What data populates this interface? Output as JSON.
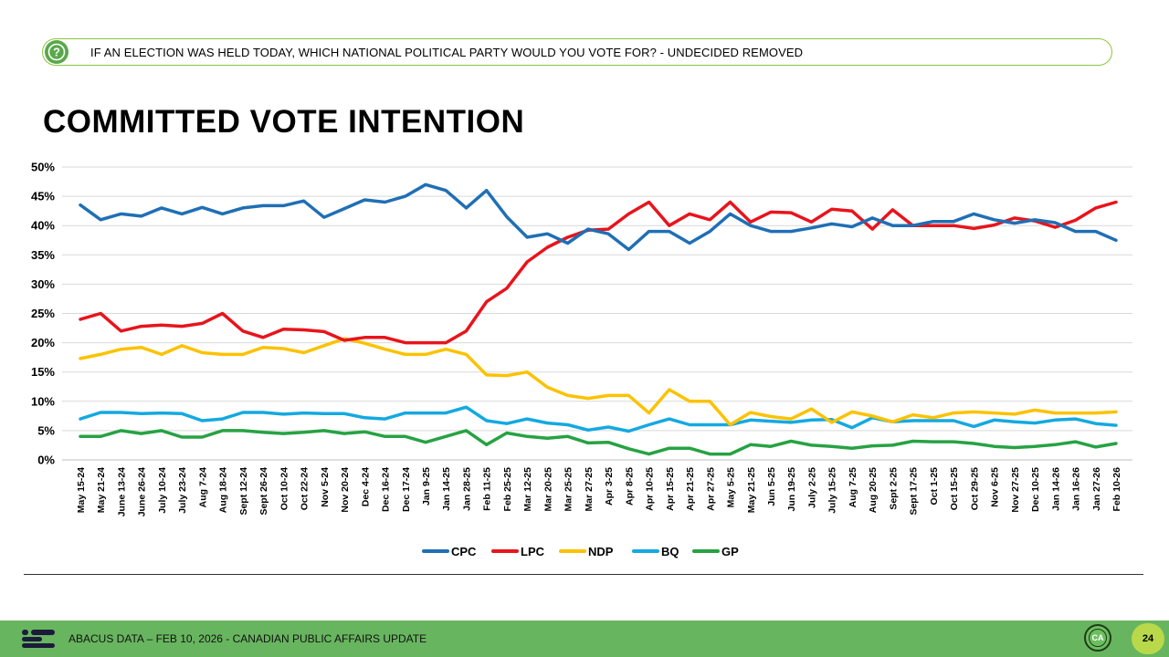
{
  "question": {
    "icon": "question-mark-icon",
    "text": "IF AN ELECTION WAS HELD TODAY, WHICH NATIONAL POLITICAL PARTY WOULD YOU VOTE FOR? - UNDECIDED REMOVED"
  },
  "title": "COMMITTED VOTE INTENTION",
  "footer": {
    "logo_icon": "abacus-logo-icon",
    "text": "ABACUS DATA – FEB 10, 2026 - CANADIAN PUBLIC AFFAIRS UPDATE",
    "badge_icon": "ca-badge-icon",
    "badge_text": "CA",
    "page_number": "24"
  },
  "chart_data": {
    "type": "line",
    "title": "COMMITTED VOTE INTENTION",
    "xlabel": "",
    "ylabel": "",
    "ylim": [
      0,
      50
    ],
    "yticks": [
      "0%",
      "5%",
      "10%",
      "15%",
      "20%",
      "25%",
      "30%",
      "35%",
      "40%",
      "45%",
      "50%"
    ],
    "grid": true,
    "legend_position": "bottom",
    "categories": [
      "May 15-24",
      "May 21-24",
      "June 13-24",
      "June 26-24",
      "July 10-24",
      "July 23-24",
      "Aug 7-24",
      "Aug 18-24",
      "Sept 12-24",
      "Sept 26-24",
      "Oct 10-24",
      "Oct 22-24",
      "Nov 5-24",
      "Nov 20-24",
      "Dec 4-24",
      "Dec 16-24",
      "Dec 17-24",
      "Jan 9-25",
      "Jan 14-25",
      "Jan 28-25",
      "Feb 11-25",
      "Feb 25-25",
      "Mar 12-25",
      "Mar 20-25",
      "Mar 25-25",
      "Mar 27-25",
      "Apr 3-25",
      "Apr 8-25",
      "Apr 10-25",
      "Apr 15-25",
      "Apr 21-25",
      "Apr 27-25",
      "May 5-25",
      "May 21-25",
      "Jun 5-25",
      "Jun 19-25",
      "July 2-25",
      "July 15-25",
      "Aug 7-25",
      "Aug 20-25",
      "Sept 2-25",
      "Sept 17-25",
      "Oct 1-25",
      "Oct 15-25",
      "Oct 29-25",
      "Nov 6-25",
      "Nov 27-25",
      "Dec 10-25",
      "Jan 14-26",
      "Jan 16-26",
      "Jan 27-26",
      "Feb 10-26"
    ],
    "series": [
      {
        "name": "CPC",
        "color": "#1f6fb5",
        "values": [
          43.5,
          41,
          42,
          41.6,
          43,
          42,
          43.1,
          42,
          43,
          43.4,
          43.4,
          44.2,
          41.4,
          42.9,
          44.4,
          44,
          45,
          47,
          46,
          43,
          46,
          41.5,
          38,
          38.6,
          37,
          39.4,
          38.6,
          35.9,
          39,
          39,
          37,
          39,
          42,
          40,
          39,
          39,
          39.6,
          40.3,
          39.8,
          41.3,
          40,
          40,
          40.7,
          40.7,
          42,
          41,
          40.4,
          41,
          40.5,
          39,
          39,
          37.5
        ]
      },
      {
        "name": "LPC",
        "color": "#e8141c",
        "values": [
          24,
          25,
          22,
          22.8,
          23,
          22.8,
          23.3,
          25,
          22,
          20.9,
          22.3,
          22.2,
          21.9,
          20.4,
          20.9,
          20.9,
          20,
          20,
          20,
          22,
          27,
          29.3,
          33.8,
          36.3,
          38,
          39.2,
          39.4,
          42,
          44,
          40,
          42,
          41,
          44,
          40.6,
          42.3,
          42.2,
          40.6,
          42.8,
          42.5,
          39.4,
          42.7,
          40,
          40,
          40,
          39.5,
          40.1,
          41.3,
          40.8,
          39.7,
          40.9,
          43,
          44
        ]
      },
      {
        "name": "NDP",
        "color": "#fcc200",
        "values": [
          17.3,
          18,
          18.9,
          19.2,
          18,
          19.5,
          18.3,
          18,
          18,
          19.2,
          19,
          18.3,
          19.5,
          20.7,
          19.9,
          18.9,
          18,
          18,
          18.9,
          18,
          14.5,
          14.4,
          15,
          12.4,
          11,
          10.5,
          11,
          11,
          8,
          12,
          10,
          10,
          6,
          8.1,
          7.4,
          7,
          8.7,
          6.4,
          8.2,
          7.5,
          6.5,
          7.7,
          7.2,
          8,
          8.2,
          8,
          7.8,
          8.5,
          8,
          8,
          8,
          8.2
        ]
      },
      {
        "name": "BQ",
        "color": "#14a9e0",
        "values": [
          7,
          8.1,
          8.1,
          7.9,
          8,
          7.9,
          6.7,
          7,
          8.1,
          8.1,
          7.8,
          8,
          7.9,
          7.9,
          7.2,
          7,
          8,
          8,
          8,
          9,
          6.7,
          6.2,
          7,
          6.3,
          6,
          5.1,
          5.6,
          4.9,
          6,
          7,
          6,
          6,
          6,
          6.8,
          6.6,
          6.4,
          6.8,
          6.9,
          5.5,
          7.2,
          6.5,
          6.7,
          6.7,
          6.7,
          5.7,
          6.8,
          6.5,
          6.3,
          6.8,
          7,
          6.2,
          5.9
        ]
      },
      {
        "name": "GP",
        "color": "#27a243",
        "values": [
          4,
          4,
          5,
          4.5,
          5,
          3.9,
          3.9,
          5,
          5,
          4.7,
          4.5,
          4.7,
          5,
          4.5,
          4.8,
          4,
          4,
          3,
          4,
          5,
          2.6,
          4.6,
          4,
          3.7,
          4,
          2.9,
          3,
          1.9,
          1,
          2,
          2,
          1,
          1,
          2.6,
          2.3,
          3.2,
          2.5,
          2.3,
          2,
          2.4,
          2.5,
          3.2,
          3.1,
          3.1,
          2.8,
          2.3,
          2.1,
          2.3,
          2.6,
          3.1,
          2.2,
          2.8
        ]
      }
    ]
  }
}
